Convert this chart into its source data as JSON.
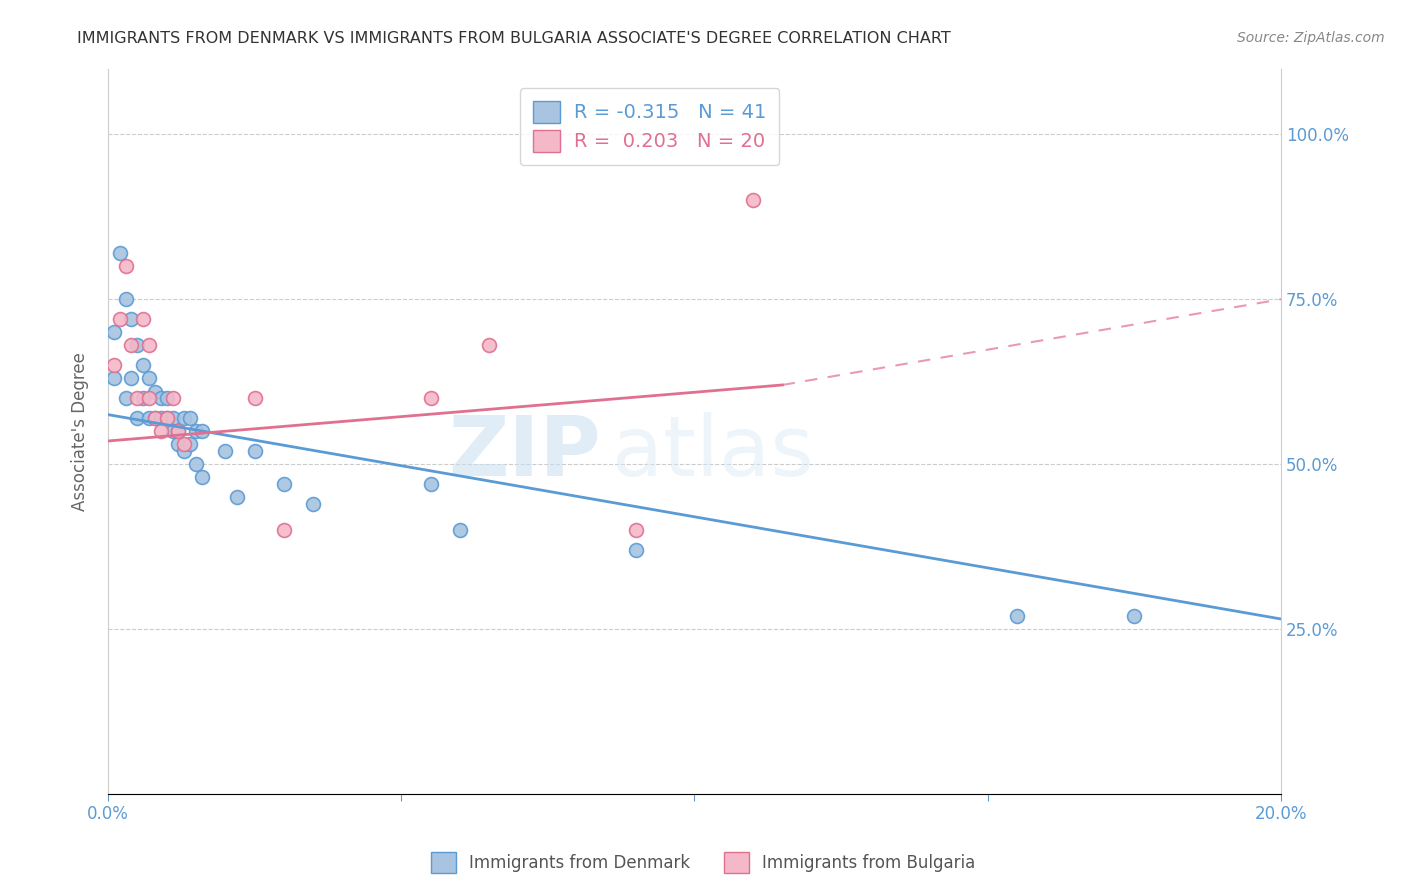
{
  "title": "IMMIGRANTS FROM DENMARK VS IMMIGRANTS FROM BULGARIA ASSOCIATE'S DEGREE CORRELATION CHART",
  "source": "Source: ZipAtlas.com",
  "ylabel": "Associate's Degree",
  "xlim": [
    0.0,
    0.2
  ],
  "ylim": [
    0.0,
    1.1
  ],
  "ytick_positions": [
    0.25,
    0.5,
    0.75,
    1.0
  ],
  "ytick_labels": [
    "25.0%",
    "50.0%",
    "75.0%",
    "100.0%"
  ],
  "xtick_positions": [
    0.0,
    0.05,
    0.1,
    0.15,
    0.2
  ],
  "xtick_labels": [
    "0.0%",
    "",
    "",
    "",
    "20.0%"
  ],
  "denmark_x": [
    0.001,
    0.001,
    0.002,
    0.003,
    0.003,
    0.004,
    0.004,
    0.005,
    0.005,
    0.006,
    0.006,
    0.007,
    0.007,
    0.008,
    0.008,
    0.009,
    0.009,
    0.01,
    0.01,
    0.011,
    0.011,
    0.012,
    0.012,
    0.013,
    0.013,
    0.014,
    0.014,
    0.015,
    0.015,
    0.016,
    0.016,
    0.02,
    0.022,
    0.025,
    0.03,
    0.035,
    0.055,
    0.06,
    0.09,
    0.155,
    0.175
  ],
  "denmark_y": [
    0.7,
    0.63,
    0.82,
    0.75,
    0.6,
    0.72,
    0.63,
    0.68,
    0.57,
    0.65,
    0.6,
    0.63,
    0.57,
    0.61,
    0.57,
    0.6,
    0.57,
    0.6,
    0.57,
    0.57,
    0.55,
    0.55,
    0.53,
    0.57,
    0.52,
    0.57,
    0.53,
    0.55,
    0.5,
    0.55,
    0.48,
    0.52,
    0.45,
    0.52,
    0.47,
    0.44,
    0.47,
    0.4,
    0.37,
    0.27,
    0.27
  ],
  "bulgaria_x": [
    0.001,
    0.002,
    0.003,
    0.004,
    0.005,
    0.006,
    0.007,
    0.007,
    0.008,
    0.009,
    0.01,
    0.011,
    0.012,
    0.013,
    0.025,
    0.03,
    0.055,
    0.065,
    0.09,
    0.11
  ],
  "bulgaria_y": [
    0.65,
    0.72,
    0.8,
    0.68,
    0.6,
    0.72,
    0.6,
    0.68,
    0.57,
    0.55,
    0.57,
    0.6,
    0.55,
    0.53,
    0.6,
    0.4,
    0.6,
    0.68,
    0.4,
    0.9
  ],
  "denmark_color": "#a8c4e0",
  "denmark_edge_color": "#5b9bd5",
  "bulgaria_color": "#f4b8c8",
  "bulgaria_edge_color": "#e07090",
  "denmark_R": -0.315,
  "denmark_N": 41,
  "bulgaria_R": 0.203,
  "bulgaria_N": 20,
  "grid_color": "#cccccc",
  "axis_label_color": "#5b9bd5",
  "title_color": "#333333",
  "watermark_zip": "ZIP",
  "watermark_atlas": "atlas",
  "marker_size": 100,
  "dk_line_x0": 0.0,
  "dk_line_y0": 0.575,
  "dk_line_x1": 0.2,
  "dk_line_y1": 0.265,
  "bg_line_solid_x0": 0.0,
  "bg_line_solid_y0": 0.535,
  "bg_line_solid_x1": 0.115,
  "bg_line_solid_y1": 0.62,
  "bg_line_dash_x0": 0.115,
  "bg_line_dash_y0": 0.62,
  "bg_line_dash_x1": 0.2,
  "bg_line_dash_y1": 0.75
}
